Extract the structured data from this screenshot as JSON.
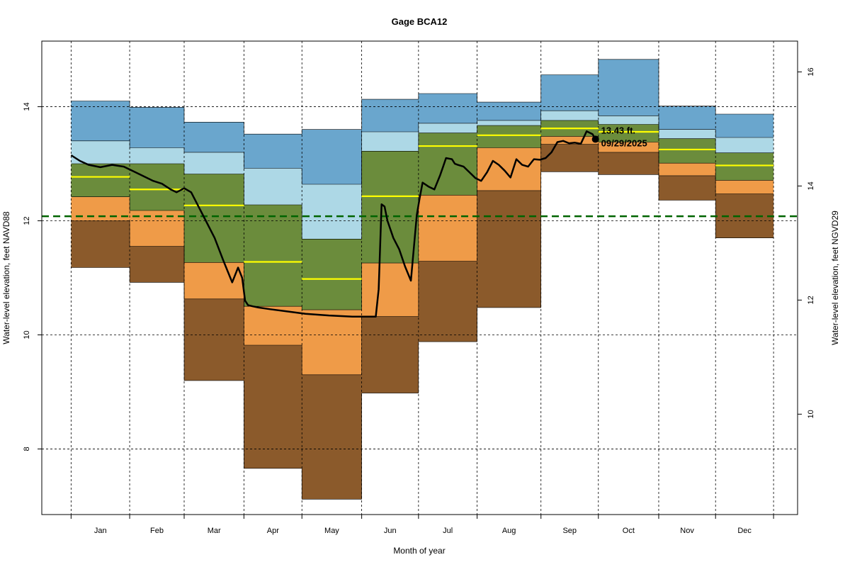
{
  "chart_data": {
    "type": "area",
    "title": "Gage BCA12",
    "xlabel": "Month of year",
    "ylabel_left": "Water-level elevation, feet NAVD88",
    "ylabel_right": "Water-level elevation, feet NGVD29",
    "y_left_range": [
      6.85,
      15.15
    ],
    "y_left_ticks": [
      8,
      10,
      12,
      14
    ],
    "y_right_ticks": [
      10,
      12,
      14,
      16
    ],
    "datum_offset_ngvd29_minus_navd88": 1.39,
    "x_range": [
      -0.5,
      12.4
    ],
    "month_boundaries": [
      0,
      1,
      1.93,
      2.95,
      3.94,
      4.96,
      5.93,
      6.93,
      8.02,
      9.0,
      10.03,
      11.0,
      11.99
    ],
    "categories": [
      "Jan",
      "Feb",
      "Mar",
      "Apr",
      "May",
      "Jun",
      "Jul",
      "Aug",
      "Sep",
      "Oct",
      "Nov",
      "Dec"
    ],
    "band_colors": [
      "#8B5A2B",
      "#EF9B48",
      "#6B8C3C",
      "#ADD8E6",
      "#6AA6CD"
    ],
    "median_color": "#FFFF00",
    "reference_line": {
      "value": 12.08,
      "color": "#006400",
      "style": "dashed"
    },
    "percentile_bands": [
      {
        "month": "Jan",
        "q0": 11.18,
        "q1": 12.0,
        "q2": 12.42,
        "q3": 13.0,
        "q4": 13.4,
        "q5": 14.1,
        "median": 12.77
      },
      {
        "month": "Feb",
        "q0": 10.92,
        "q1": 11.55,
        "q2": 12.18,
        "q3": 13.0,
        "q4": 13.28,
        "q5": 13.99,
        "median": 12.55
      },
      {
        "month": "Mar",
        "q0": 9.2,
        "q1": 10.63,
        "q2": 11.27,
        "q3": 12.82,
        "q4": 13.2,
        "q5": 13.73,
        "median": 12.27
      },
      {
        "month": "Apr",
        "q0": 7.66,
        "q1": 9.82,
        "q2": 10.5,
        "q3": 12.28,
        "q4": 12.92,
        "q5": 13.52,
        "median": 11.28
      },
      {
        "month": "May",
        "q0": 7.12,
        "q1": 9.3,
        "q2": 10.44,
        "q3": 11.68,
        "q4": 12.64,
        "q5": 13.6,
        "median": 10.98
      },
      {
        "month": "Jun",
        "q0": 8.98,
        "q1": 10.32,
        "q2": 11.26,
        "q3": 13.22,
        "q4": 13.56,
        "q5": 14.13,
        "median": 12.43
      },
      {
        "month": "Jul",
        "q0": 9.88,
        "q1": 11.29,
        "q2": 12.45,
        "q3": 13.54,
        "q4": 13.71,
        "q5": 14.23,
        "median": 13.31
      },
      {
        "month": "Aug",
        "q0": 10.48,
        "q1": 12.53,
        "q2": 13.28,
        "q3": 13.67,
        "q4": 13.76,
        "q5": 14.08,
        "median": 13.5
      },
      {
        "month": "Sep",
        "q0": 12.86,
        "q1": 13.34,
        "q2": 13.48,
        "q3": 13.76,
        "q4": 13.93,
        "q5": 14.56,
        "median": 13.62
      },
      {
        "month": "Oct",
        "q0": 12.81,
        "q1": 13.2,
        "q2": 13.38,
        "q3": 13.69,
        "q4": 13.84,
        "q5": 14.83,
        "median": 13.56
      },
      {
        "month": "Nov",
        "q0": 12.36,
        "q1": 12.79,
        "q2": 13.01,
        "q3": 13.44,
        "q4": 13.6,
        "q5": 14.01,
        "median": 13.25
      },
      {
        "month": "Dec",
        "q0": 11.7,
        "q1": 12.47,
        "q2": 12.71,
        "q3": 13.19,
        "q4": 13.46,
        "q5": 13.87,
        "median": 12.97
      }
    ],
    "series": [
      {
        "name": "Observed water level",
        "color": "#000000",
        "x": [
          0,
          0.15,
          0.3,
          0.5,
          0.7,
          0.9,
          1.0,
          1.2,
          1.4,
          1.55,
          1.7,
          1.8,
          1.93,
          2.05,
          2.15,
          2.3,
          2.45,
          2.6,
          2.75,
          2.85,
          2.92,
          2.97,
          3.02,
          3.1,
          3.2,
          3.4,
          3.7,
          4.0,
          4.4,
          4.8,
          5.2,
          5.25,
          5.3,
          5.35,
          5.4,
          5.5,
          5.6,
          5.7,
          5.8,
          5.9,
          5.95,
          6.0,
          6.1,
          6.2,
          6.3,
          6.35,
          6.4,
          6.5,
          6.55,
          6.6,
          6.7,
          6.8,
          6.9,
          7.0,
          7.1,
          7.2,
          7.3,
          7.4,
          7.5,
          7.6,
          7.7,
          7.8,
          7.9,
          8.0,
          8.1,
          8.2,
          8.3,
          8.4,
          8.5,
          8.6,
          8.7,
          8.8,
          8.9,
          8.95
        ],
        "y": [
          13.15,
          13.05,
          12.98,
          12.94,
          12.98,
          12.95,
          12.9,
          12.8,
          12.7,
          12.65,
          12.55,
          12.5,
          12.57,
          12.5,
          12.3,
          12.0,
          11.7,
          11.3,
          10.92,
          11.18,
          11.0,
          10.6,
          10.52,
          10.5,
          10.48,
          10.45,
          10.41,
          10.37,
          10.34,
          10.32,
          10.32,
          10.8,
          12.29,
          12.25,
          12.0,
          11.7,
          11.5,
          11.2,
          10.95,
          12.1,
          12.4,
          12.67,
          12.6,
          12.55,
          12.8,
          12.95,
          13.1,
          13.08,
          13.0,
          12.98,
          12.95,
          12.85,
          12.75,
          12.7,
          12.85,
          13.05,
          12.98,
          12.88,
          12.76,
          13.08,
          12.98,
          12.95,
          13.08,
          13.07,
          13.1,
          13.2,
          13.38,
          13.4,
          13.36,
          13.37,
          13.35,
          13.57,
          13.52,
          13.43
        ]
      }
    ],
    "annotation": {
      "x": 8.95,
      "y": 13.43,
      "value_label": "13.43 ft.",
      "date_label": "09/29/2025"
    }
  }
}
